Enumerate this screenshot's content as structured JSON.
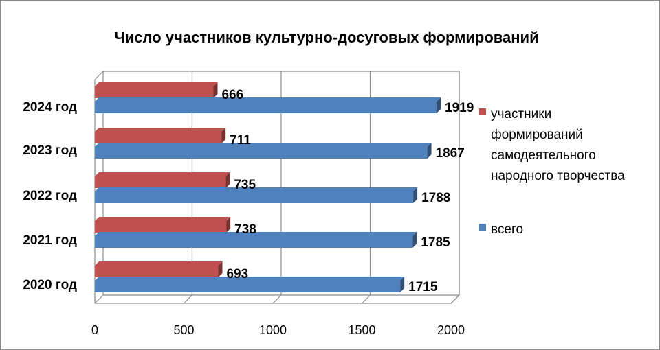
{
  "chart_data": {
    "type": "bar",
    "orientation": "horizontal",
    "title": "Число участников культурно-досуговых  формирований",
    "categories": [
      "2020 год",
      "2021 год",
      "2022 год",
      "2023 год",
      "2024 год"
    ],
    "series": [
      {
        "name": "всего",
        "values": [
          1715,
          1785,
          1788,
          1867,
          1919
        ],
        "color": "#4f81bd"
      },
      {
        "name": "участники формирований самодеятельного народного творчества",
        "values": [
          693,
          738,
          735,
          711,
          666
        ],
        "color": "#c0504d"
      }
    ],
    "legend_lines": [
      "участники",
      "формирований",
      "самодеятельного",
      "народного творчества"
    ],
    "xlim": [
      0,
      2000
    ],
    "xticks": [
      0,
      500,
      1000,
      1500,
      2000
    ],
    "grid": true,
    "legend": "right"
  }
}
